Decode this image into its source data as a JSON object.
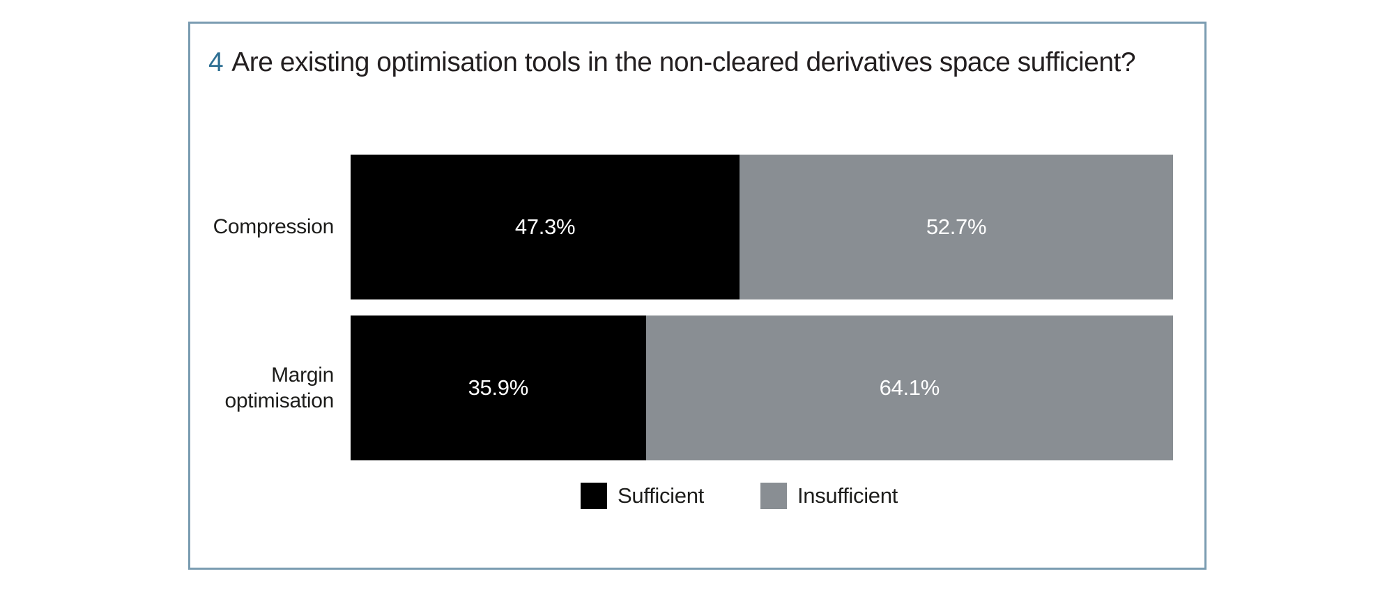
{
  "figure": {
    "number": "4",
    "title": "Are existing optimisation tools in the non-cleared derivatives space sufficient?"
  },
  "colors": {
    "panel_border": "#7A9CB1",
    "figure_number_accent": "#2E6F93",
    "title_text": "#231F20",
    "sufficient": "#000000",
    "insufficient": "#898E93",
    "value_label_text": "#ffffff"
  },
  "chart_data": {
    "type": "bar",
    "orientation": "horizontal",
    "stacked": true,
    "title": "Are existing optimisation tools in the non-cleared derivatives space sufficient?",
    "figure_number": "4",
    "categories": [
      "Compression",
      "Margin optimisation"
    ],
    "series": [
      {
        "name": "Sufficient",
        "color": "#000000",
        "values": [
          47.3,
          35.9
        ]
      },
      {
        "name": "Insufficient",
        "color": "#898E93",
        "values": [
          52.7,
          64.1
        ]
      }
    ],
    "value_labels": [
      [
        "47.3%",
        "52.7%"
      ],
      [
        "35.9%",
        "64.1%"
      ]
    ],
    "xlim": [
      0,
      100
    ],
    "grid": false,
    "axes_shown": false,
    "value_label_position": "center-of-segment",
    "legend_position": "bottom"
  }
}
